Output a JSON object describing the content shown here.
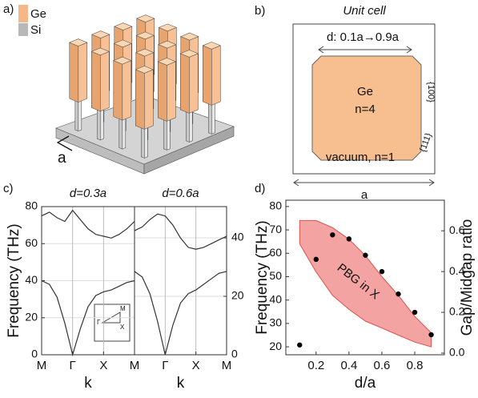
{
  "panels": {
    "a": {
      "label": "a)",
      "legend": [
        "Ge",
        "Si"
      ],
      "period": "a"
    },
    "b": {
      "label": "b)",
      "title": "Unit cell",
      "size_range": "d: 0.1a→0.9a",
      "material": "Ge",
      "material_index": "n=4",
      "facet_100": "{100}",
      "facet_111": "{111}",
      "background": "vacuum,  n=1",
      "period": "a"
    },
    "c": {
      "label": "c)",
      "inset": [
        "M",
        "Γ",
        "X"
      ]
    },
    "d": {
      "label": "d)"
    }
  },
  "chart_data": [
    {
      "type": "line",
      "title": "d=0.3a",
      "xlabel": "k",
      "ylabel": "Frequency (THz)",
      "x": [
        0,
        0.25,
        0.5,
        0.75,
        1,
        1.25,
        1.5,
        1.75,
        2,
        2.25,
        2.5,
        2.75,
        3
      ],
      "series": [
        {
          "color": "#333333",
          "values": [
            40,
            38,
            31,
            17,
            0,
            14,
            26,
            32,
            34,
            35,
            37,
            39,
            40
          ]
        },
        {
          "color": "#333333",
          "values": [
            75,
            77,
            74,
            72,
            78,
            73,
            68,
            65,
            64,
            63,
            65,
            68,
            72
          ]
        }
      ],
      "xlim": [
        0,
        3
      ],
      "xticks": [
        {
          "value": 0,
          "label": "M"
        },
        {
          "value": 1,
          "label": "Γ"
        },
        {
          "value": 2,
          "label": "X"
        }
      ],
      "ylim": [
        0,
        80
      ],
      "yticks": [
        0,
        20,
        40,
        60,
        80
      ],
      "grid": true
    },
    {
      "type": "line",
      "title": "d=0.6a",
      "xlabel": "k",
      "x": [
        0,
        0.25,
        0.5,
        0.75,
        1,
        1.25,
        1.5,
        1.75,
        2,
        2.25,
        2.5,
        2.75,
        3
      ],
      "series": [
        {
          "color": "#333333",
          "values": [
            45,
            42,
            33,
            18,
            0,
            16,
            28,
            33,
            35,
            38,
            41,
            44,
            45
          ]
        },
        {
          "color": "#333333",
          "values": [
            67,
            69,
            73,
            76,
            75,
            70,
            63,
            58,
            57,
            58,
            60,
            62,
            64
          ]
        }
      ],
      "xlim": [
        0,
        3
      ],
      "xticks": [
        {
          "value": 0,
          "label": "M"
        },
        {
          "value": 1,
          "label": "Γ"
        },
        {
          "value": 2,
          "label": "X"
        },
        {
          "value": 3,
          "label": "M"
        }
      ],
      "ylim": [
        0,
        80
      ],
      "y2lim": [
        0,
        50.7
      ],
      "y2ticks": [
        0,
        20,
        40
      ],
      "grid": true
    },
    {
      "type": "scatter",
      "xlabel": "d/a",
      "ylabel": "Frequency (THz)",
      "ylabel_color": "#c00000",
      "y2label": "Gap/Midgap ratio",
      "annotation": "PBG in X",
      "x": [
        0.1,
        0.2,
        0.3,
        0.4,
        0.5,
        0.6,
        0.7,
        0.8,
        0.9
      ],
      "band": {
        "color": "#f4a3a3",
        "upper": [
          74,
          74,
          71,
          66,
          59,
          50,
          42,
          33,
          26
        ],
        "lower": [
          64,
          52,
          42,
          36,
          31,
          28,
          25,
          22,
          20
        ]
      },
      "series": [
        {
          "axis": "y2",
          "color": "#000000",
          "values": [
            0.04,
            0.46,
            0.58,
            0.56,
            0.48,
            0.4,
            0.29,
            0.2,
            0.09
          ]
        }
      ],
      "xlim": [
        0.016,
        0.98
      ],
      "xticks": [
        0.2,
        0.4,
        0.6,
        0.8
      ],
      "ylim": [
        16.6,
        82.7
      ],
      "yticks": [
        20,
        30,
        40,
        50,
        60,
        70,
        80
      ],
      "y2lim": [
        -0.008,
        0.75
      ],
      "y2ticks": [
        {
          "value": 0,
          "label": "0.0"
        },
        0.2,
        0.4,
        0.6
      ]
    }
  ]
}
